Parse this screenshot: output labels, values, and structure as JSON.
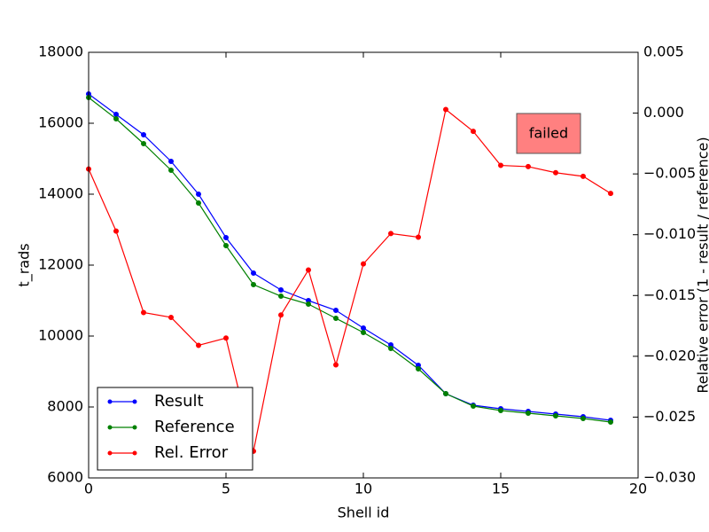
{
  "chart_data": {
    "type": "line",
    "xlabel": "Shell id",
    "ylabel": "t_rads",
    "y2label": "Relative error (1 - result / reference)",
    "annotation": "failed",
    "x": [
      0,
      1,
      2,
      3,
      4,
      5,
      6,
      7,
      8,
      9,
      10,
      11,
      12,
      13,
      14,
      15,
      16,
      17,
      18,
      19
    ],
    "series": [
      {
        "name": "Result",
        "color": "#0000ff",
        "values": [
          16825,
          16250,
          15675,
          14925,
          14000,
          12775,
          11775,
          11300,
          11000,
          10725,
          10225,
          9750,
          9175,
          8375,
          8050,
          7950,
          7875,
          7800,
          7725,
          7625
        ]
      },
      {
        "name": "Reference",
        "color": "#008000",
        "values": [
          16725,
          16125,
          15425,
          14675,
          13750,
          12550,
          11450,
          11125,
          10900,
          10500,
          10100,
          9650,
          9075,
          8375,
          8025,
          7900,
          7825,
          7750,
          7675,
          7575
        ]
      },
      {
        "name": "Rel. Error",
        "color": "#ff0000",
        "axis": "y2",
        "values": [
          -0.0046,
          -0.0097,
          -0.0164,
          -0.0168,
          -0.0191,
          -0.0185,
          -0.0278,
          -0.0166,
          -0.0129,
          -0.0207,
          -0.0124,
          -0.0099,
          -0.0102,
          0.0003,
          -0.0015,
          -0.0043,
          -0.0044,
          -0.0049,
          -0.0052,
          -0.0066
        ]
      }
    ],
    "xlim": [
      0,
      20
    ],
    "xticks": [
      0,
      5,
      10,
      15,
      20
    ],
    "ylim": [
      6000,
      18000
    ],
    "yticks": [
      6000,
      8000,
      10000,
      12000,
      14000,
      16000,
      18000
    ],
    "y2lim": [
      -0.03,
      0.005
    ],
    "y2ticks": [
      {
        "value": -0.03,
        "label": "−0.030"
      },
      {
        "value": -0.025,
        "label": "−0.025"
      },
      {
        "value": -0.02,
        "label": "−0.020"
      },
      {
        "value": -0.015,
        "label": "−0.015"
      },
      {
        "value": -0.01,
        "label": "−0.010"
      },
      {
        "value": -0.005,
        "label": "−0.005"
      },
      {
        "value": 0,
        "label": "0.000"
      },
      0.005
    ],
    "grid": false,
    "legend": "lower left"
  }
}
